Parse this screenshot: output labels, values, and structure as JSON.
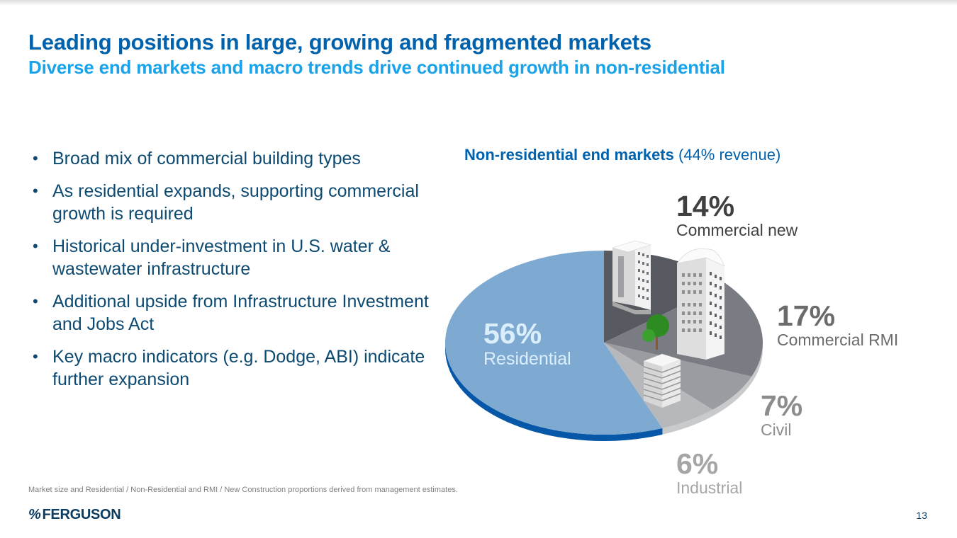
{
  "slide": {
    "title": "Leading positions in large, growing and fragmented markets",
    "subtitle": "Diverse end markets and macro trends drive continued growth in non-residential",
    "bullets": [
      "Broad mix of commercial building types",
      "As residential expands, supporting commercial growth is required",
      "Historical under-investment in U.S. water & wastewater infrastructure",
      "Additional upside from Infrastructure Investment and Jobs Act",
      "Key macro indicators (e.g. Dodge, ABI) indicate further expansion"
    ],
    "bullet_glyph": "•",
    "chart_heading_strong": "Non-residential end markets",
    "chart_heading_rest": " (44% revenue)",
    "footnote": "Market size and Residential / Non-Residential and RMI / New Construction proportions derived from management estimates.",
    "logo_mark": "%",
    "logo_text": "FERGUSON",
    "page_number": "13"
  },
  "colors": {
    "title": "#0061ad",
    "subtitle": "#1aa3e8",
    "body_text": "#0c4a72",
    "residential": "#7eaad2",
    "residential_rim": "#0657a8",
    "commercial_new": "#56595f",
    "commercial_rmi": "#797c82",
    "civil": "#9a9ca1",
    "industrial": "#b7b8bc",
    "gray_rim": "#c9cacc"
  },
  "chart_data": {
    "type": "pie",
    "title": "Non-residential end markets (44% revenue)",
    "unit": "% of revenue",
    "slices": [
      {
        "label": "Residential",
        "value": 56,
        "display": "56%",
        "color": "#7eaad2",
        "label_color": "#dbeefb"
      },
      {
        "label": "Commercial new",
        "value": 14,
        "display": "14%",
        "color": "#56595f",
        "label_color": "#404040"
      },
      {
        "label": "Commercial RMI",
        "value": 17,
        "display": "17%",
        "color": "#797c82",
        "label_color": "#6b6b6b"
      },
      {
        "label": "Civil",
        "value": 7,
        "display": "7%",
        "color": "#9a9ca1",
        "label_color": "#8c8c8c"
      },
      {
        "label": "Industrial",
        "value": 6,
        "display": "6%",
        "color": "#b7b8bc",
        "label_color": "#a6a6a6"
      }
    ],
    "legend": "none (direct labels)"
  }
}
